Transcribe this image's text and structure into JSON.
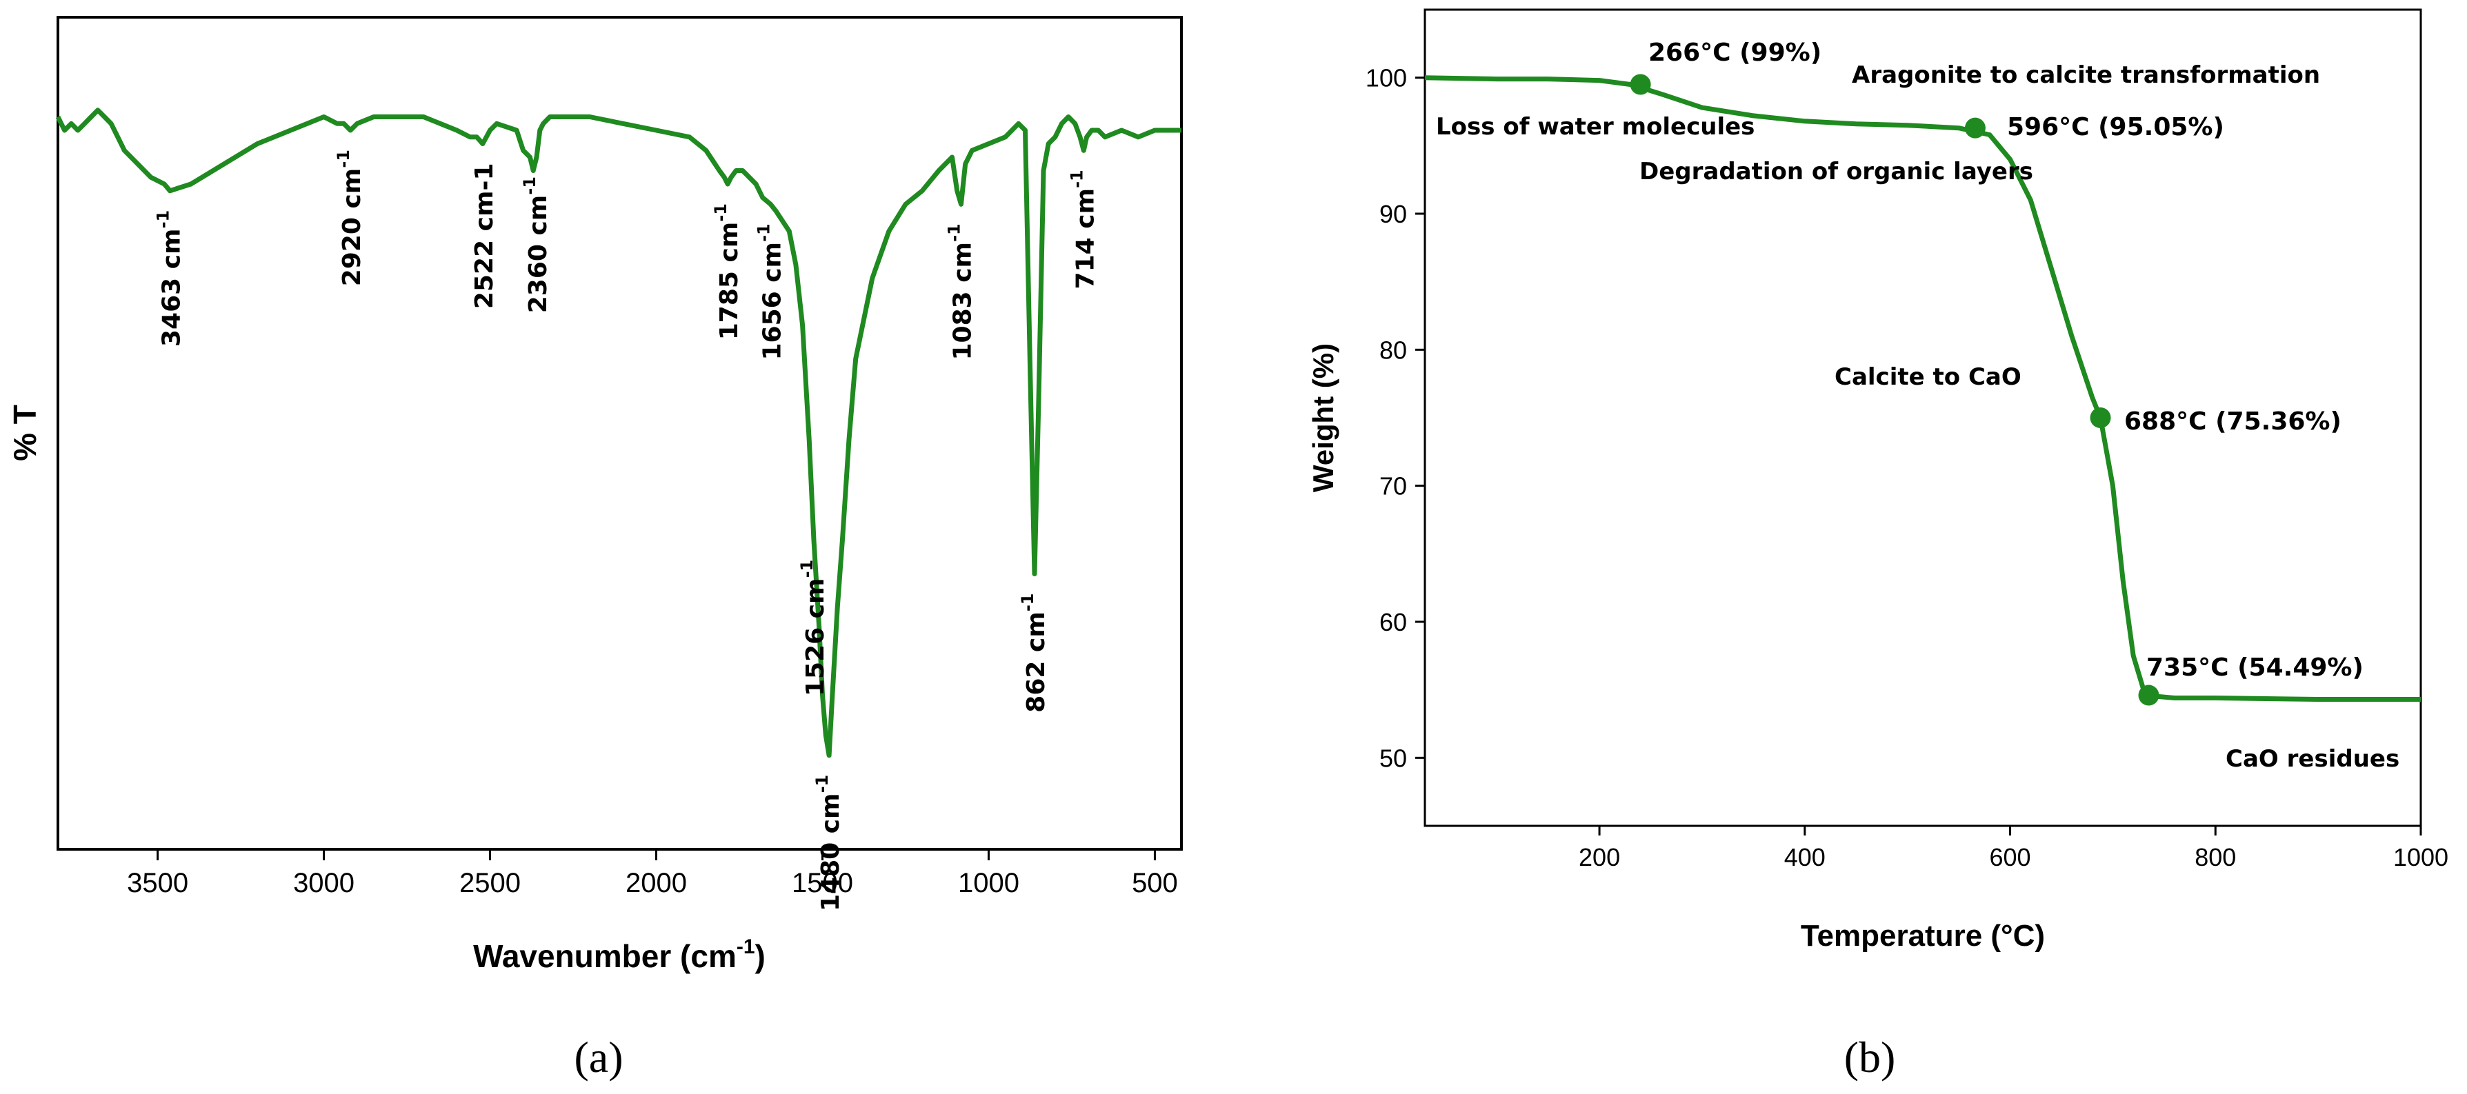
{
  "colors": {
    "series": "#1f8a1f",
    "axis": "#000000",
    "background": "#ffffff"
  },
  "panels": {
    "a": {
      "label": "(a)"
    },
    "b": {
      "label": "(b)"
    }
  },
  "chart_data": [
    {
      "panel": "a",
      "type": "line",
      "xlabel": "Wavenumber (cm",
      "xlabel_sup": "-1",
      "xlabel_end": ")",
      "ylabel": "% T",
      "xlim": [
        3800,
        420
      ],
      "x_reversed": true,
      "ylim": [
        0,
        100
      ],
      "y_ticks_shown": false,
      "x_ticks": [
        3500,
        3000,
        2500,
        2000,
        1500,
        1000,
        500
      ],
      "x": [
        3800,
        3780,
        3760,
        3740,
        3720,
        3700,
        3680,
        3660,
        3640,
        3620,
        3600,
        3560,
        3520,
        3480,
        3463,
        3400,
        3300,
        3200,
        3100,
        3000,
        2960,
        2940,
        2920,
        2900,
        2850,
        2800,
        2700,
        2600,
        2560,
        2540,
        2522,
        2500,
        2480,
        2420,
        2400,
        2380,
        2370,
        2360,
        2350,
        2340,
        2320,
        2300,
        2200,
        2100,
        2000,
        1900,
        1850,
        1810,
        1795,
        1785,
        1775,
        1760,
        1740,
        1700,
        1680,
        1656,
        1640,
        1600,
        1580,
        1560,
        1540,
        1526,
        1510,
        1500,
        1490,
        1480,
        1470,
        1455,
        1440,
        1420,
        1400,
        1350,
        1300,
        1250,
        1200,
        1150,
        1110,
        1095,
        1083,
        1070,
        1050,
        1000,
        950,
        910,
        890,
        875,
        862,
        850,
        835,
        820,
        800,
        780,
        760,
        740,
        725,
        714,
        705,
        690,
        670,
        650,
        600,
        550,
        500,
        450,
        420
      ],
      "values": [
        98,
        96,
        97,
        96,
        97,
        98,
        99,
        98,
        97,
        95,
        93,
        91,
        89,
        88,
        87,
        88,
        91,
        94,
        96,
        98,
        97,
        97,
        96,
        97,
        98,
        98,
        98,
        96,
        95,
        95,
        94,
        96,
        97,
        96,
        93,
        92,
        90,
        92,
        96,
        97,
        98,
        98,
        98,
        97,
        96,
        95,
        93,
        90,
        89,
        88,
        89,
        90,
        90,
        88,
        86,
        85,
        84,
        81,
        76,
        67,
        50,
        35,
        22,
        12,
        6,
        3,
        12,
        25,
        35,
        50,
        62,
        74,
        81,
        85,
        87,
        90,
        92,
        87,
        85,
        91,
        93,
        94,
        95,
        97,
        96,
        60,
        30,
        55,
        90,
        94,
        95,
        97,
        98,
        97,
        95,
        93,
        95,
        96,
        96,
        95,
        96,
        95,
        96,
        96,
        96
      ],
      "peak_labels": [
        {
          "text": "3463 cm",
          "x": 3463
        },
        {
          "text": "2920 cm",
          "x": 2920
        },
        {
          "text": "2522 cm-1",
          "x": 2522
        },
        {
          "text": "2360 cm",
          "x": 2360
        },
        {
          "text": "1785 cm",
          "x": 1785
        },
        {
          "text": "1656 cm",
          "x": 1656
        },
        {
          "text": "1526 cm",
          "x": 1526
        },
        {
          "text": "1480 cm",
          "x": 1480
        },
        {
          "text": "1083 cm",
          "x": 1083
        },
        {
          "text": "862 cm",
          "x": 862
        },
        {
          "text": "714 cm",
          "x": 714
        }
      ],
      "peak_label_sup": "-1"
    },
    {
      "panel": "b",
      "type": "line",
      "xlabel": "Temperature (°C)",
      "ylabel": "Weight (%)",
      "xlim": [
        30,
        1000
      ],
      "ylim": [
        45,
        105
      ],
      "x_ticks": [
        200,
        400,
        600,
        800,
        1000
      ],
      "y_ticks": [
        50,
        60,
        70,
        80,
        90,
        100
      ],
      "x": [
        30,
        100,
        150,
        200,
        230,
        260,
        300,
        350,
        400,
        450,
        500,
        550,
        580,
        600,
        620,
        640,
        660,
        680,
        688,
        700,
        710,
        720,
        730,
        735,
        745,
        760,
        800,
        900,
        1000
      ],
      "values": [
        100,
        99.9,
        99.9,
        99.8,
        99.5,
        98.8,
        97.8,
        97.2,
        96.8,
        96.6,
        96.5,
        96.3,
        95.8,
        94.0,
        91.0,
        86.0,
        81.0,
        76.5,
        75.0,
        70.0,
        63.0,
        57.5,
        55.0,
        54.7,
        54.5,
        54.4,
        54.4,
        54.3,
        54.3
      ],
      "markers": [
        {
          "x": 240,
          "y": 99.5,
          "label": "266°C (99%)"
        },
        {
          "x": 566,
          "y": 96.3,
          "label": "596°C (95.05%)"
        },
        {
          "x": 688,
          "y": 75.0,
          "label": "688°C (75.36%)"
        },
        {
          "x": 735,
          "y": 54.6,
          "label": "735°C (54.49%)"
        }
      ],
      "annotations": [
        {
          "text": "Loss of water molecules"
        },
        {
          "text": "Aragonite to calcite transformation"
        },
        {
          "text": "Degradation of organic layers"
        },
        {
          "text": "Calcite to CaO"
        },
        {
          "text": "CaO residues"
        }
      ]
    }
  ]
}
